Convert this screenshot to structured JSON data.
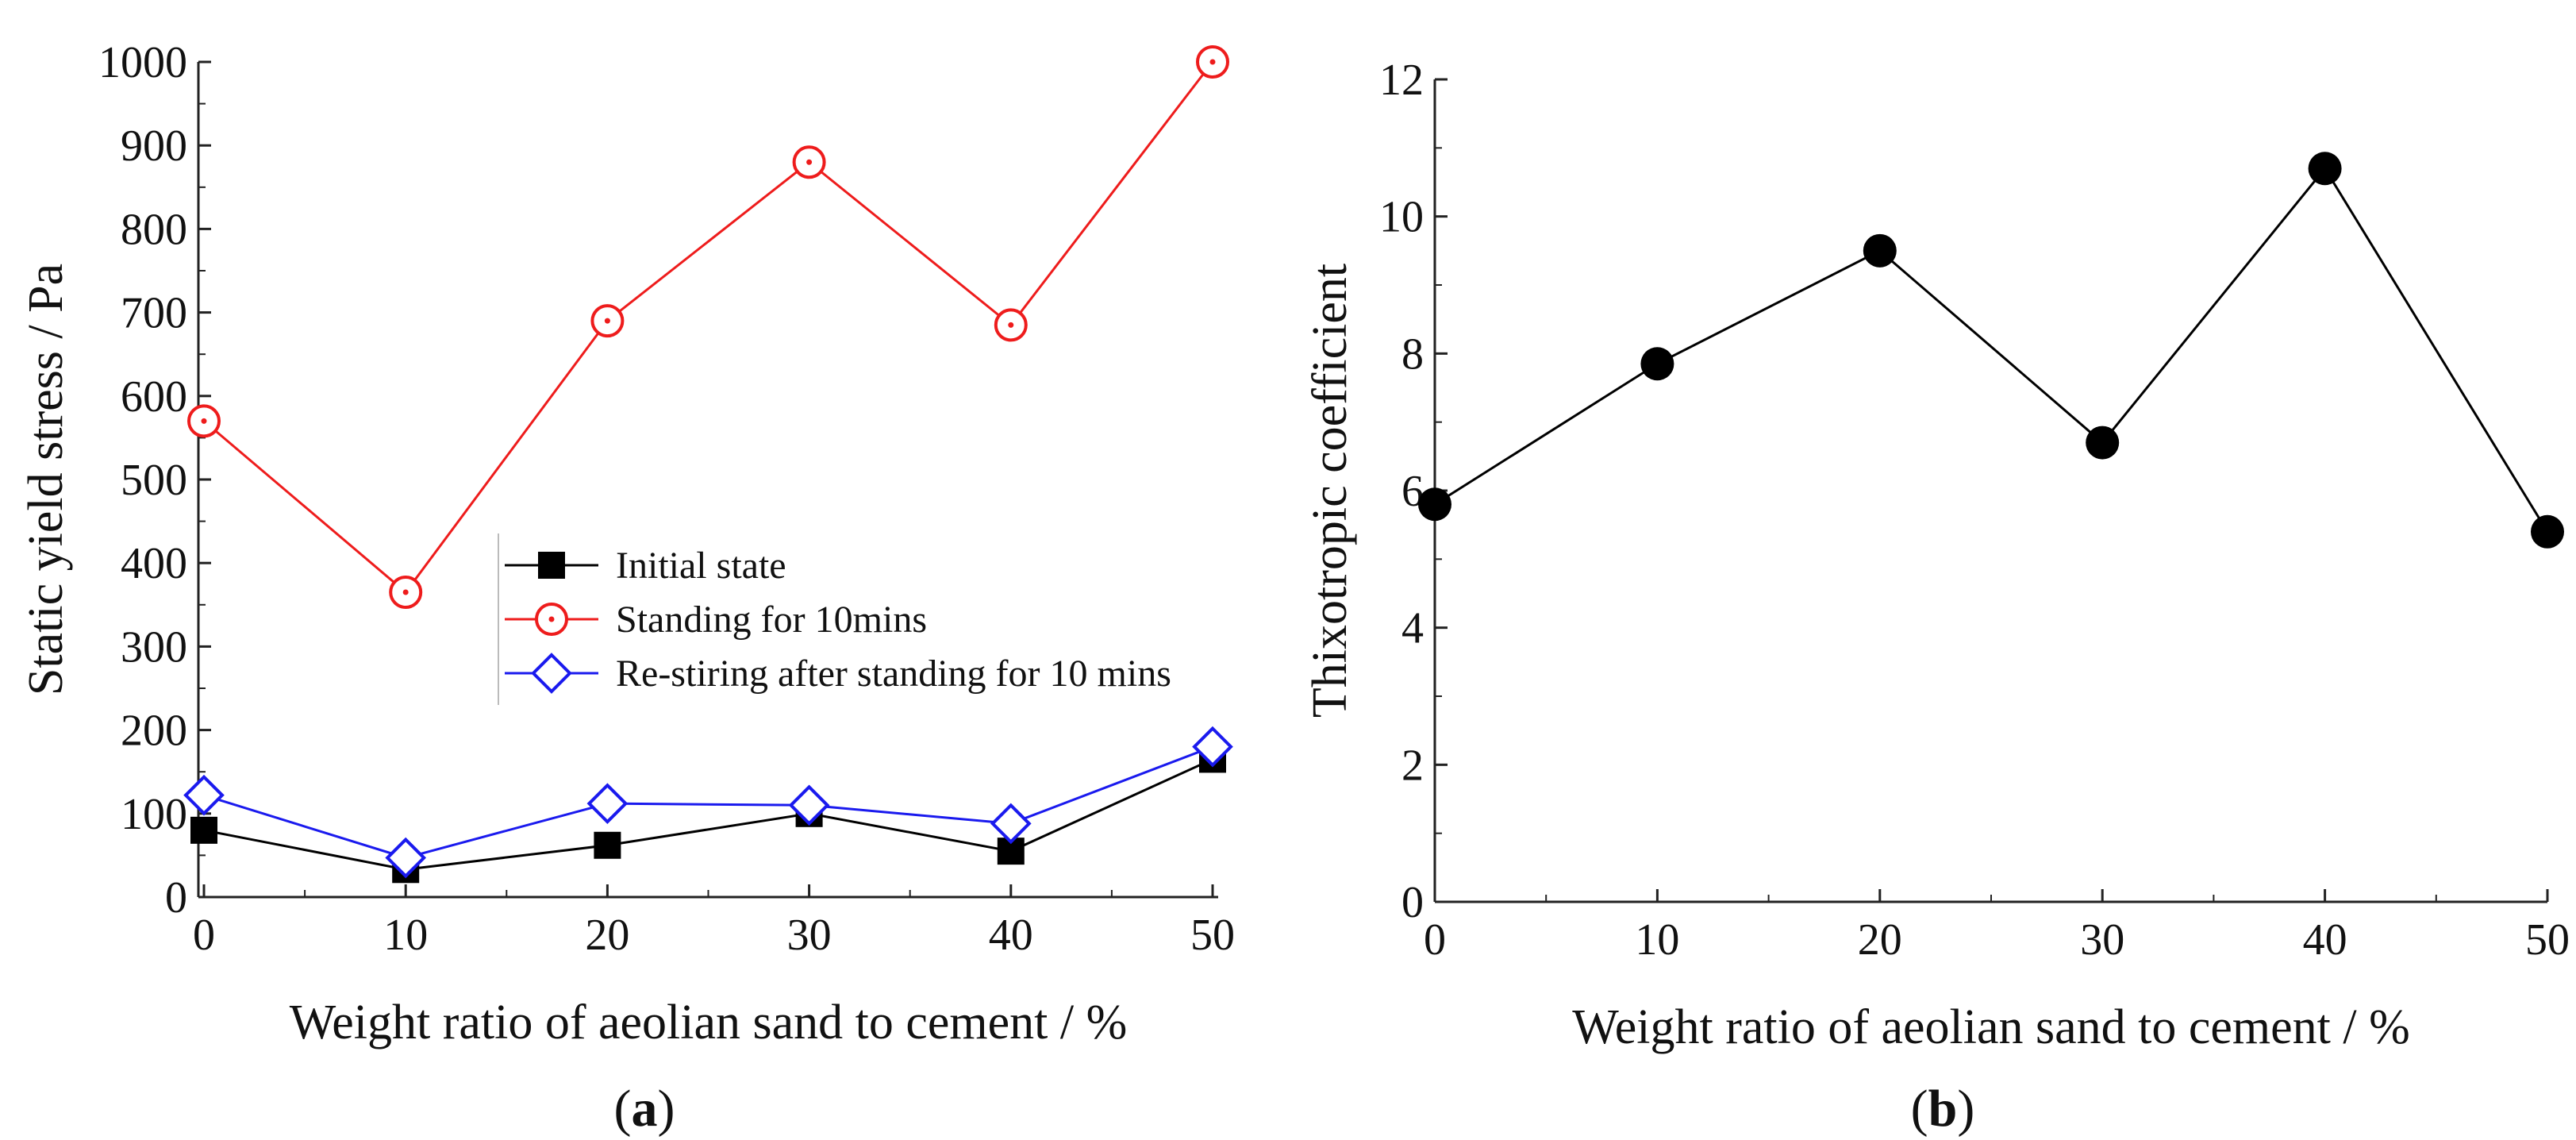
{
  "chart_data": [
    {
      "panel": "a",
      "panel_label": "a",
      "type": "line",
      "xlabel": "Weight ratio of aeolian sand to cement / %",
      "ylabel": "Static yield stress / Pa",
      "x": [
        0,
        10,
        20,
        30,
        40,
        50
      ],
      "xlim": [
        0,
        50
      ],
      "ylim": [
        0,
        1000
      ],
      "xticks": [
        "0",
        "10",
        "20",
        "30",
        "40",
        "50"
      ],
      "yticks": [
        "0",
        "100",
        "200",
        "300",
        "400",
        "500",
        "600",
        "700",
        "800",
        "900",
        "1000"
      ],
      "legend_position": "center-right",
      "series": [
        {
          "name": "Initial state",
          "values": [
            80,
            33,
            62,
            100,
            55,
            165
          ],
          "color": "#000000",
          "marker": "square"
        },
        {
          "name": "Standing for 10mins",
          "values": [
            570,
            365,
            690,
            880,
            685,
            1000
          ],
          "color": "#ee1c1c",
          "marker": "circle-dot"
        },
        {
          "name": "Re-stiring after standing for 10 mins",
          "values": [
            122,
            47,
            112,
            110,
            88,
            180
          ],
          "color": "#1a1aee",
          "marker": "diamond"
        }
      ]
    },
    {
      "panel": "b",
      "panel_label": "b",
      "type": "line",
      "xlabel": "Weight ratio of aeolian sand to cement / %",
      "ylabel": "Thixotropic coefficient",
      "x": [
        0,
        10,
        20,
        30,
        40,
        50
      ],
      "xlim": [
        0,
        50
      ],
      "ylim": [
        0,
        12
      ],
      "xticks": [
        "0",
        "10",
        "20",
        "30",
        "40",
        "50"
      ],
      "yticks": [
        "0",
        "2",
        "4",
        "6",
        "8",
        "10",
        "12"
      ],
      "series": [
        {
          "name": "Thixotropic coefficient",
          "values": [
            5.8,
            7.85,
            9.5,
            6.7,
            10.7,
            5.4
          ],
          "color": "#000000",
          "marker": "circle"
        }
      ]
    }
  ]
}
